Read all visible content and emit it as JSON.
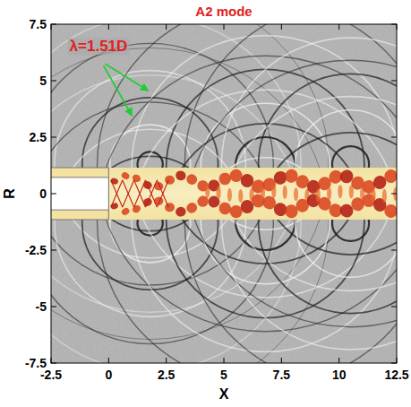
{
  "chart_data": {
    "type": "field",
    "title": "A2 mode",
    "x_label": "X",
    "y_label": "R",
    "xlim": [
      -2.5,
      12.5
    ],
    "ylim": [
      -7.5,
      7.5
    ],
    "xticks": [
      -2.5,
      0,
      2.5,
      5,
      7.5,
      10,
      12.5
    ],
    "yticks": [
      -7.5,
      -5,
      -2.5,
      0,
      2.5,
      5,
      7.5
    ],
    "grid": false,
    "annotations": [
      {
        "text": "λ=1.51D",
        "x": -1.7,
        "y": 6.3,
        "color": "#e02020"
      }
    ]
  }
}
